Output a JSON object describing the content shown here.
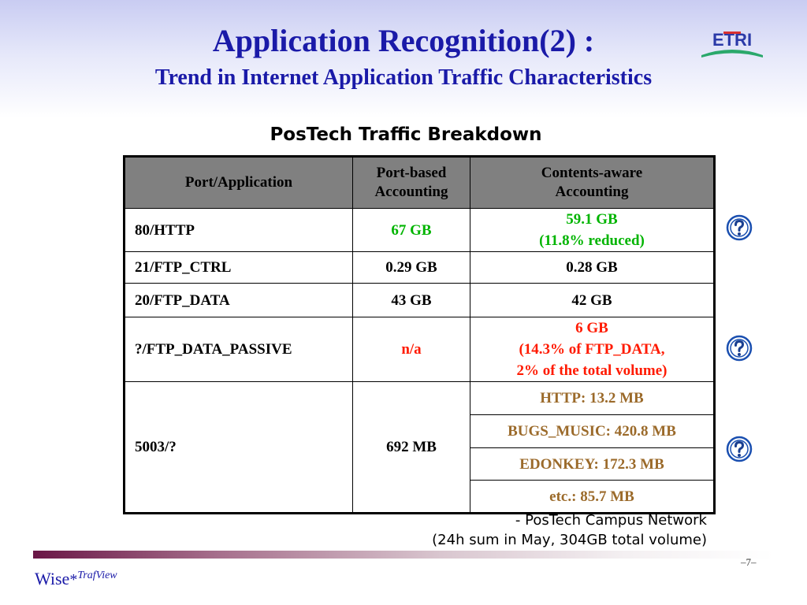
{
  "header": {
    "title": "Application Recognition(2) :",
    "subtitle": "Trend in Internet Application Traffic Characteristics",
    "logo_text": "ETRI"
  },
  "table": {
    "title": "PosTech Traffic Breakdown",
    "columns": [
      "Port/Application",
      "Port-based Accounting",
      "Contents-aware Accounting"
    ],
    "rows": [
      {
        "app": "80/HTTP",
        "port": "67 GB",
        "content_line1": "59.1 GB",
        "content_line2": "(11.8% reduced)"
      },
      {
        "app": "21/FTP_CTRL",
        "port": "0.29 GB",
        "content": "0.28 GB"
      },
      {
        "app": "20/FTP_DATA",
        "port": "43 GB",
        "content": "42 GB"
      },
      {
        "app": "?/FTP_DATA_PASSIVE",
        "port": "n/a",
        "content_line1": "6 GB",
        "content_line2": "(14.3% of FTP_DATA,",
        "content_line3": "2% of the total volume)"
      },
      {
        "app": "5003/?",
        "port": "692 MB",
        "content_items": [
          "HTTP: 13.2 MB",
          "BUGS_MUSIC: 420.8 MB",
          "EDONKEY: 172.3 MB",
          "etc.: 85.7 MB"
        ]
      }
    ]
  },
  "footnote": {
    "line1": "- PosTech Campus Network",
    "line2": "(24h sum in May, 304GB total volume)"
  },
  "footer": {
    "page": "–7–",
    "brand_wise": "Wise",
    "brand_star": "*",
    "brand_traf": "TrafView"
  },
  "icons": {
    "help": "help-question-icon",
    "logo": "etri-logo"
  },
  "colors": {
    "title": "#1a1aa8",
    "header_bg": "#808080",
    "green": "#00b400",
    "red": "#ff1a00",
    "brown": "#9b6a2a"
  }
}
